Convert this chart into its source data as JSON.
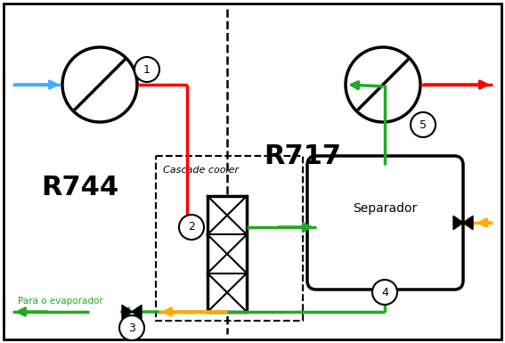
{
  "bg_color": "#ffffff",
  "colors": {
    "red": "#ff0000",
    "green": "#22aa22",
    "blue": "#44aaff",
    "orange": "#ffaa00",
    "black": "#000000"
  },
  "label_R744": "R744",
  "label_R717": "R717",
  "label_cascade": "Cascade cooler",
  "label_separador": "Separador",
  "label_evaporador": "Para o evaporador",
  "figsize": [
    5.67,
    3.85
  ],
  "dpi": 100
}
